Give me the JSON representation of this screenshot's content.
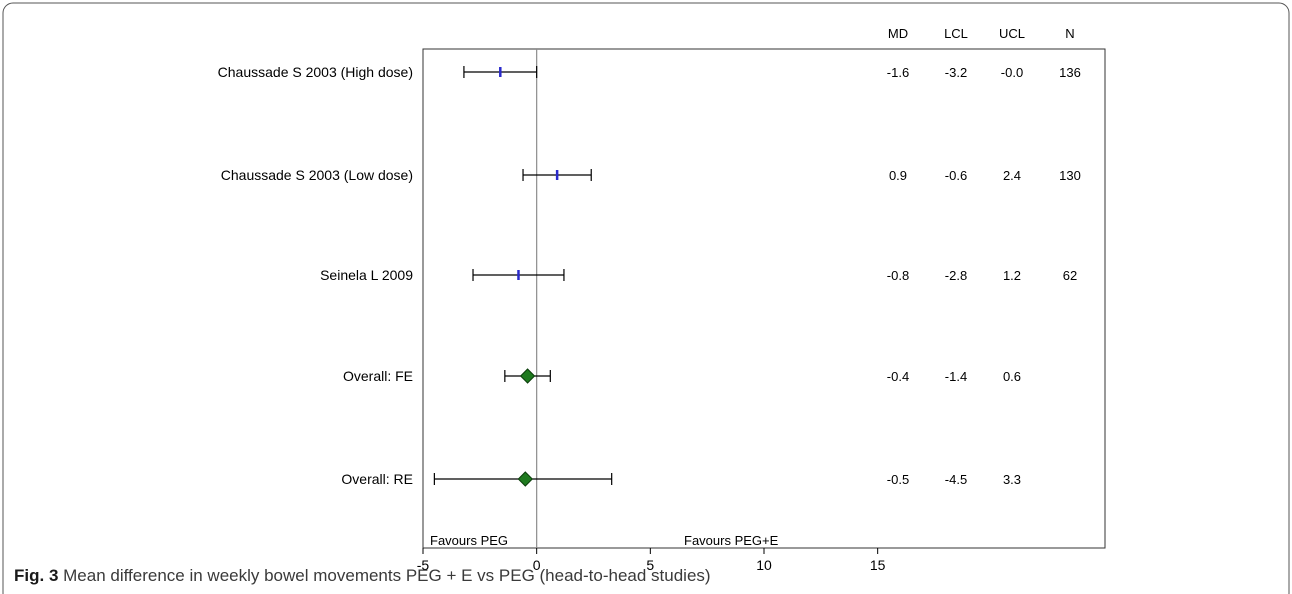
{
  "caption": {
    "label": "Fig. 3",
    "text": "Mean difference in weekly bowel movements PEG + E vs PEG (head-to-head studies)"
  },
  "colors": {
    "study_marker": "#2a2acc",
    "pooled_fill": "#1f7a1f",
    "pooled_outline": "#0b3d0b",
    "line": "#000000",
    "null_line": "#8c8c8c"
  },
  "chart_data": {
    "type": "forest",
    "xlim": [
      -5,
      25
    ],
    "x_ticks": [
      -5,
      0,
      5,
      10,
      15
    ],
    "null_value": 0,
    "columns": [
      "MD",
      "LCL",
      "UCL",
      "N"
    ],
    "rows": [
      {
        "label": "Chaussade S 2003 (High dose)",
        "md": -1.6,
        "lcl": -3.2,
        "ucl": -0.0,
        "n": 136,
        "marker": "tick",
        "cells": {
          "md": "-1.6",
          "lcl": "-3.2",
          "ucl": "-0.0",
          "n": "136"
        }
      },
      {
        "label": "Chaussade S 2003 (Low dose)",
        "md": 0.9,
        "lcl": -0.6,
        "ucl": 2.4,
        "n": 130,
        "marker": "tick",
        "cells": {
          "md": "0.9",
          "lcl": "-0.6",
          "ucl": "2.4",
          "n": "130"
        }
      },
      {
        "label": "Seinela L 2009",
        "md": -0.8,
        "lcl": -2.8,
        "ucl": 1.2,
        "n": 62,
        "marker": "tick",
        "cells": {
          "md": "-0.8",
          "lcl": "-2.8",
          "ucl": "1.2",
          "n": "62"
        }
      },
      {
        "label": "Overall: FE",
        "md": -0.4,
        "lcl": -1.4,
        "ucl": 0.6,
        "n": null,
        "marker": "diamond",
        "cells": {
          "md": "-0.4",
          "lcl": "-1.4",
          "ucl": "0.6",
          "n": ""
        }
      },
      {
        "label": "Overall: RE",
        "md": -0.5,
        "lcl": -4.5,
        "ucl": 3.3,
        "n": null,
        "marker": "diamond",
        "cells": {
          "md": "-0.5",
          "lcl": "-4.5",
          "ucl": "3.3",
          "n": ""
        }
      }
    ],
    "favours_left": "Favours PEG",
    "favours_right": "Favours PEG+E"
  }
}
